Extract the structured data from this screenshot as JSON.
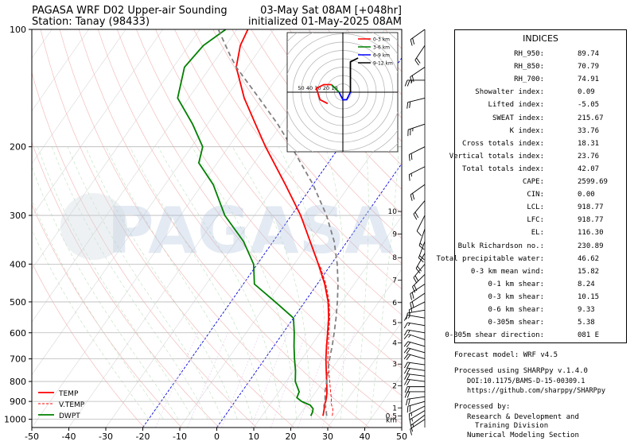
{
  "header": {
    "title_left_1": "PAGASA WRF D02 Upper-air Sounding",
    "title_left_2": "Station: Tanay (98433)",
    "title_right_1": "03-May Sat 08AM [+048hr]",
    "title_right_2": "initialized 01-May-2025 08AM"
  },
  "watermark": "PAGASA",
  "chart_data": {
    "type": "line",
    "subtype": "skew-t log-p sounding",
    "x_axis": {
      "ticks": [
        -50,
        -40,
        -30,
        -20,
        -10,
        0,
        10,
        20,
        30,
        40,
        50
      ],
      "range": [
        -50,
        50
      ],
      "skew": true
    },
    "y_axis": {
      "scale": "log",
      "ticks": [
        100,
        200,
        300,
        400,
        500,
        600,
        700,
        800,
        900,
        1000
      ],
      "range": [
        1050,
        100
      ]
    },
    "height_labels_km": [
      "10",
      "9",
      "8",
      "7",
      "6",
      "5",
      "4",
      "3",
      "2",
      "1",
      "0.5",
      "km"
    ],
    "height_label_pressures": [
      293,
      335,
      385,
      440,
      502,
      565,
      637,
      722,
      820,
      935,
      980,
      1005
    ],
    "legend": [
      {
        "label": "TEMP",
        "color": "#ff0000",
        "style": "solid"
      },
      {
        "label": "V.TEMP",
        "color": "#ff0000",
        "style": "dashed"
      },
      {
        "label": "DWPT",
        "color": "#008000",
        "style": "solid"
      }
    ],
    "series": [
      {
        "name": "TEMP",
        "color": "#ff0000",
        "points": [
          [
            980,
            26.5
          ],
          [
            960,
            26
          ],
          [
            940,
            25.5
          ],
          [
            920,
            24.8
          ],
          [
            900,
            24.5
          ],
          [
            880,
            24
          ],
          [
            850,
            23
          ],
          [
            800,
            21
          ],
          [
            750,
            18.8
          ],
          [
            700,
            16.5
          ],
          [
            650,
            14.3
          ],
          [
            600,
            12
          ],
          [
            550,
            9.5
          ],
          [
            500,
            6.3
          ],
          [
            450,
            2
          ],
          [
            400,
            -3.5
          ],
          [
            350,
            -10
          ],
          [
            300,
            -17.5
          ],
          [
            250,
            -27.5
          ],
          [
            200,
            -40
          ],
          [
            175,
            -47
          ],
          [
            150,
            -55
          ],
          [
            125,
            -63
          ],
          [
            110,
            -66
          ],
          [
            100,
            -67
          ]
        ]
      },
      {
        "name": "V.TEMP",
        "color": "#ff0000",
        "dashed": true,
        "points": [
          [
            980,
            29
          ],
          [
            960,
            28.5
          ],
          [
            940,
            27.8
          ],
          [
            920,
            26.8
          ],
          [
            900,
            26
          ],
          [
            880,
            25.3
          ],
          [
            850,
            24
          ],
          [
            800,
            21.8
          ],
          [
            750,
            19.5
          ],
          [
            700,
            17
          ],
          [
            650,
            14.8
          ],
          [
            600,
            12.3
          ],
          [
            550,
            9.8
          ],
          [
            500,
            6.6
          ],
          [
            450,
            2.3
          ],
          [
            400,
            -3.2
          ]
        ]
      },
      {
        "name": "DWPT",
        "color": "#008000",
        "points": [
          [
            980,
            23.2
          ],
          [
            960,
            23
          ],
          [
            940,
            22.5
          ],
          [
            920,
            21
          ],
          [
            900,
            18
          ],
          [
            880,
            16
          ],
          [
            850,
            15.5
          ],
          [
            800,
            12.5
          ],
          [
            750,
            10.5
          ],
          [
            700,
            8
          ],
          [
            650,
            5.5
          ],
          [
            600,
            3
          ],
          [
            550,
            0
          ],
          [
            500,
            -8
          ],
          [
            450,
            -17
          ],
          [
            400,
            -21
          ],
          [
            350,
            -28
          ],
          [
            300,
            -38
          ],
          [
            250,
            -47
          ],
          [
            220,
            -55
          ],
          [
            200,
            -57
          ],
          [
            175,
            -64
          ],
          [
            150,
            -73
          ],
          [
            125,
            -77
          ],
          [
            110,
            -76
          ],
          [
            100,
            -73
          ]
        ]
      },
      {
        "name": "Parcel",
        "color": "#808080",
        "dashed": true,
        "points": [
          [
            980,
            27.5
          ],
          [
            930,
            25.5
          ],
          [
            918.77,
            25
          ],
          [
            850,
            22.5
          ],
          [
            800,
            21
          ],
          [
            750,
            19.3
          ],
          [
            700,
            17.5
          ],
          [
            650,
            15.8
          ],
          [
            600,
            13.8
          ],
          [
            550,
            11.5
          ],
          [
            500,
            8.8
          ],
          [
            450,
            5.6
          ],
          [
            400,
            1.6
          ],
          [
            350,
            -3.5
          ],
          [
            300,
            -10.5
          ],
          [
            250,
            -20
          ],
          [
            200,
            -33
          ],
          [
            175,
            -41
          ],
          [
            150,
            -51
          ],
          [
            125,
            -63
          ],
          [
            116.3,
            -67
          ],
          [
            100,
            -75
          ]
        ]
      }
    ],
    "hodograph": {
      "rings_labels": [
        "50",
        "40",
        "30",
        "20",
        "10"
      ],
      "legend": [
        {
          "label": "0-3 km",
          "color": "#ff0000"
        },
        {
          "label": "3-6 km",
          "color": "#008000"
        },
        {
          "label": "6-9 km",
          "color": "#0000ff"
        },
        {
          "label": "9-12 km",
          "color": "#000000"
        }
      ],
      "segments": [
        {
          "color": "#ff0000",
          "uv": [
            [
              -4,
              -3
            ],
            [
              -6,
              -2
            ],
            [
              -7,
              1
            ],
            [
              -5,
              2
            ],
            [
              -3,
              2
            ]
          ]
        },
        {
          "color": "#008000",
          "uv": [
            [
              -3,
              2
            ],
            [
              -2,
              1
            ],
            [
              -1,
              0
            ]
          ]
        },
        {
          "color": "#0000ff",
          "uv": [
            [
              -1,
              0
            ],
            [
              0,
              -2
            ],
            [
              1,
              -2
            ],
            [
              2,
              0
            ]
          ]
        },
        {
          "color": "#000000",
          "uv": [
            [
              2,
              0
            ],
            [
              2,
              4
            ],
            [
              2,
              8
            ],
            [
              4,
              9
            ]
          ]
        }
      ]
    },
    "wind_barbs": [
      {
        "p": 1000,
        "u": -3,
        "v": -2
      },
      {
        "p": 975,
        "u": -4,
        "v": -3
      },
      {
        "p": 950,
        "u": -5,
        "v": -3
      },
      {
        "p": 925,
        "u": -6,
        "v": -3
      },
      {
        "p": 900,
        "u": -7,
        "v": -2
      },
      {
        "p": 875,
        "u": -7,
        "v": -1
      },
      {
        "p": 850,
        "u": -8,
        "v": 0
      },
      {
        "p": 825,
        "u": -8,
        "v": 0
      },
      {
        "p": 800,
        "u": -8,
        "v": 1
      },
      {
        "p": 775,
        "u": -8,
        "v": 1
      },
      {
        "p": 750,
        "u": -7,
        "v": 1
      },
      {
        "p": 725,
        "u": -7,
        "v": 1
      },
      {
        "p": 700,
        "u": -7,
        "v": 2
      },
      {
        "p": 675,
        "u": -7,
        "v": 2
      },
      {
        "p": 650,
        "u": -7,
        "v": 2
      },
      {
        "p": 625,
        "u": -6,
        "v": 2
      },
      {
        "p": 600,
        "u": -6,
        "v": 1
      },
      {
        "p": 575,
        "u": -6,
        "v": 1
      },
      {
        "p": 550,
        "u": -6,
        "v": 1
      },
      {
        "p": 525,
        "u": -6,
        "v": -1
      },
      {
        "p": 500,
        "u": -6,
        "v": -3
      },
      {
        "p": 475,
        "u": -6,
        "v": -4
      },
      {
        "p": 450,
        "u": -6,
        "v": -4
      },
      {
        "p": 425,
        "u": -5,
        "v": -5
      },
      {
        "p": 400,
        "u": -5,
        "v": -6
      },
      {
        "p": 375,
        "u": -4,
        "v": -7
      },
      {
        "p": 350,
        "u": -3,
        "v": -8
      },
      {
        "p": 325,
        "u": -2,
        "v": -6
      },
      {
        "p": 300,
        "u": -2,
        "v": -4
      },
      {
        "p": 275,
        "u": -5,
        "v": -6
      },
      {
        "p": 250,
        "u": -7,
        "v": -5
      },
      {
        "p": 225,
        "u": -6,
        "v": -3
      },
      {
        "p": 200,
        "u": -8,
        "v": -4
      },
      {
        "p": 175,
        "u": -9,
        "v": -3
      },
      {
        "p": 150,
        "u": -8,
        "v": -2
      },
      {
        "p": 135,
        "u": -10,
        "v": 0
      },
      {
        "p": 125,
        "u": -6,
        "v": -4
      },
      {
        "p": 110,
        "u": -4,
        "v": -6
      },
      {
        "p": 100,
        "u": -7,
        "v": -5
      }
    ]
  },
  "indices": {
    "heading": "INDICES",
    "rows": [
      {
        "label": "RH_950:",
        "value": "89.74"
      },
      {
        "label": "RH_850:",
        "value": "70.79"
      },
      {
        "label": "RH_700:",
        "value": "74.91"
      },
      {
        "label": "Showalter index:",
        "value": "0.09"
      },
      {
        "label": "Lifted index:",
        "value": "-5.05"
      },
      {
        "label": "SWEAT index:",
        "value": "215.67"
      },
      {
        "label": "K index:",
        "value": "33.76"
      },
      {
        "label": "Cross totals index:",
        "value": "18.31"
      },
      {
        "label": "Vertical totals index:",
        "value": "23.76"
      },
      {
        "label": "Total totals index:",
        "value": "42.07"
      },
      {
        "label": "CAPE:",
        "value": "2599.69"
      },
      {
        "label": "CIN:",
        "value": "0.00"
      },
      {
        "label": "LCL:",
        "value": "918.77"
      },
      {
        "label": "LFC:",
        "value": "918.77"
      },
      {
        "label": "EL:",
        "value": "116.30"
      },
      {
        "label": "Bulk Richardson no.:",
        "value": "230.89"
      },
      {
        "label": "Total precipitable water:",
        "value": "46.62"
      },
      {
        "label": "0-3 km mean wind:",
        "value": "15.82"
      },
      {
        "label": "0-1 km shear:",
        "value": "8.24"
      },
      {
        "label": "0-3 km shear:",
        "value": "10.15"
      },
      {
        "label": "0-6 km shear:",
        "value": "9.33"
      },
      {
        "label": "0-305m shear:",
        "value": "5.38"
      },
      {
        "label": "0-305m shear direction:",
        "value": "081 E"
      }
    ]
  },
  "footer": {
    "model": "Forecast model: WRF v4.5",
    "processed_using": "Processed using SHARPpy v.1.4.0",
    "doi": "DOI:10.1175/BAMS-D-15-00309.1",
    "url": "https://github.com/sharppy/SHARPpy",
    "processed_by": "Processed by:",
    "org_1": "Research & Development and",
    "org_2": "Training Division",
    "org_3": "Numerical Modeling Section"
  }
}
